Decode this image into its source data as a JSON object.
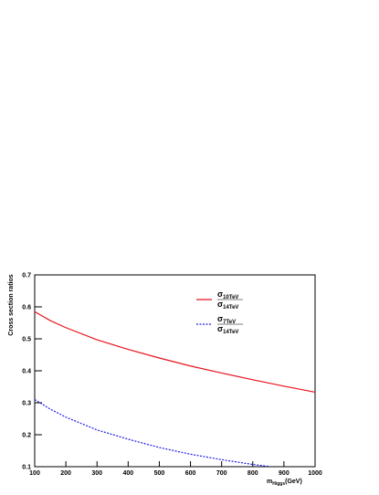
{
  "chart_data": {
    "type": "line",
    "y_label": "Cross section ratios",
    "x_label": {
      "text": "m",
      "sub": "Higgs",
      "unit": "(GeV)"
    },
    "xlim": [
      100,
      1000
    ],
    "xticks": [
      100,
      200,
      300,
      400,
      500,
      600,
      700,
      800,
      900,
      1000
    ],
    "ylim": [
      0.1,
      0.7
    ],
    "yticks": [
      0.1,
      0.2,
      0.3,
      0.4,
      0.5,
      0.6,
      0.7
    ],
    "series": [
      {
        "label": {
          "numerator": "σ",
          "numerator_sub": "10TeV",
          "denominator": "σ",
          "denominator_sub": "14TeV"
        },
        "color": "#e8141e",
        "dashed": false,
        "x": [
          100,
          150,
          200,
          300,
          400,
          500,
          600,
          700,
          800,
          900,
          1000
        ],
        "values": [
          0.585,
          0.557,
          0.535,
          0.497,
          0.467,
          0.44,
          0.415,
          0.393,
          0.372,
          0.352,
          0.333
        ]
      },
      {
        "label": {
          "numerator": "σ",
          "numerator_sub": "7TeV",
          "denominator": "σ",
          "denominator_sub": "14TeV"
        },
        "color": "#1e1ee6",
        "dashed": true,
        "x": [
          100,
          150,
          200,
          300,
          400,
          500,
          600,
          700,
          800,
          850
        ],
        "values": [
          0.31,
          0.28,
          0.255,
          0.215,
          0.186,
          0.16,
          0.139,
          0.122,
          0.107,
          0.101
        ]
      }
    ]
  }
}
